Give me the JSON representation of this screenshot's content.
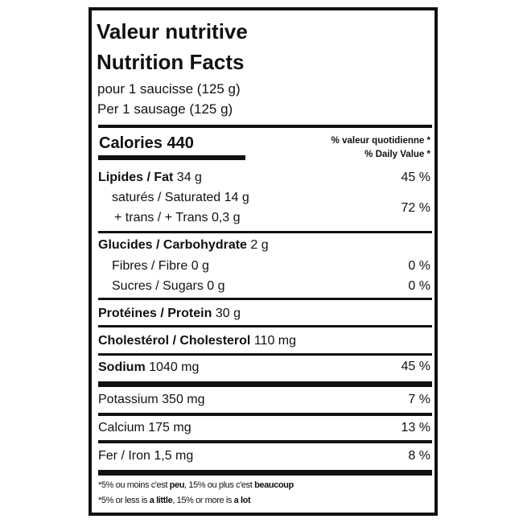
{
  "label": {
    "title_fr": "Valeur nutritive",
    "title_en": "Nutrition Facts",
    "serving_fr": "pour 1 saucisse (125 g)",
    "serving_en": "Per 1 sausage (125 g)",
    "calories_label": "Calories 440",
    "dv_header_fr": "% valeur quotidienne *",
    "dv_header_en": "% Daily Value *",
    "nutrients": {
      "fat": {
        "name": "Lipides / Fat",
        "amount": "34 g",
        "dv": "45 %"
      },
      "saturated": {
        "name": "saturés / Saturated 14 g"
      },
      "trans": {
        "name": "+ trans / + Trans 0,3 g",
        "dv": "72 %"
      },
      "carbohydrate": {
        "name": "Glucides / Carbohydrate",
        "amount": "2 g"
      },
      "fibre": {
        "name": "Fibres / Fibre 0 g",
        "dv": "0 %"
      },
      "sugars": {
        "name": "Sucres / Sugars 0 g",
        "dv": "0 %"
      },
      "protein": {
        "name": "Protéines / Protein",
        "amount": "30 g"
      },
      "cholesterol": {
        "name": "Cholestérol / Cholesterol",
        "amount": "110 mg"
      },
      "sodium": {
        "name": "Sodium",
        "amount": "1040 mg",
        "dv": "45 %"
      },
      "potassium": {
        "name": "Potassium 350 mg",
        "dv": "7 %"
      },
      "calcium": {
        "name": "Calcium 175 mg",
        "dv": "13 %"
      },
      "iron": {
        "name": "Fer / Iron 1,5 mg",
        "dv": "8 %"
      }
    },
    "footnote_fr": {
      "a": "*5% ou moins c'est ",
      "b": "peu",
      "c": ", 15% ou plus c'est ",
      "d": "beaucoup"
    },
    "footnote_en": {
      "a": "*5% or less is ",
      "b": "a little",
      "c": ", 15% or more is ",
      "d": "a lot"
    }
  }
}
